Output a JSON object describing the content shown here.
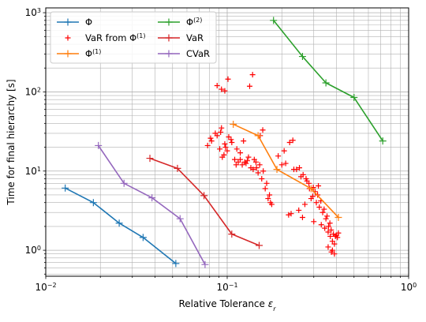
{
  "chart_data": {
    "type": "line",
    "xscale": "log",
    "yscale": "log",
    "xlim": [
      0.01,
      1.0
    ],
    "ylim": [
      0.47,
      1150
    ],
    "grid": true,
    "legend_position": "top-left",
    "xlabel": "Relative Tolerance",
    "xlabel_symbol": "ε",
    "xlabel_sub": "r",
    "ylabel": "Time for final hierarchy [s]",
    "x_ticks": [
      {
        "value": 0.01,
        "base": "10",
        "exp": "−2"
      },
      {
        "value": 0.1,
        "base": "10",
        "exp": "−1"
      },
      {
        "value": 1.0,
        "base": "10",
        "exp": "0"
      }
    ],
    "y_ticks": [
      {
        "value": 1,
        "base": "10",
        "exp": "0"
      },
      {
        "value": 10,
        "base": "10",
        "exp": "1"
      },
      {
        "value": 100,
        "base": "10",
        "exp": "2"
      },
      {
        "value": 1000,
        "base": "10",
        "exp": "3"
      }
    ],
    "series": [
      {
        "name": "Φ",
        "sup": "",
        "color": "#1f77b4",
        "style": "line",
        "x": [
          0.0128,
          0.0183,
          0.0254,
          0.0344,
          0.0521
        ],
        "y": [
          6.1,
          4.0,
          2.2,
          1.45,
          0.68
        ]
      },
      {
        "name": "VaR from Φ",
        "sup": "(1)",
        "color": "#ff0000",
        "style": "scatter",
        "x": [
          0.088,
          0.093,
          0.101,
          0.097,
          0.138,
          0.133,
          0.078,
          0.082,
          0.081,
          0.088,
          0.092,
          0.086,
          0.093,
          0.097,
          0.105,
          0.1,
          0.096,
          0.091,
          0.098,
          0.102,
          0.106,
          0.094,
          0.11,
          0.112,
          0.115,
          0.118,
          0.121,
          0.125,
          0.131,
          0.135,
          0.127,
          0.129,
          0.141,
          0.144,
          0.148,
          0.151,
          0.155,
          0.158,
          0.162,
          0.145,
          0.139,
          0.165,
          0.171,
          0.168,
          0.173,
          0.176,
          0.118,
          0.113,
          0.123,
          0.152,
          0.157,
          0.191,
          0.206,
          0.221,
          0.23,
          0.241,
          0.25,
          0.262,
          0.275,
          0.284,
          0.296,
          0.31,
          0.322,
          0.336,
          0.35,
          0.362,
          0.374,
          0.385,
          0.395,
          0.405,
          0.218,
          0.248,
          0.268,
          0.29,
          0.305,
          0.318,
          0.225,
          0.26,
          0.3,
          0.33,
          0.345,
          0.36,
          0.37,
          0.38,
          0.39,
          0.4,
          0.41,
          0.36,
          0.38,
          0.375,
          0.39,
          0.255,
          0.272,
          0.282,
          0.298,
          0.315,
          0.328,
          0.342,
          0.355,
          0.368,
          0.2,
          0.21,
          0.233
        ],
        "y": [
          120,
          108,
          145,
          103,
          165,
          118,
          21,
          24,
          26,
          28,
          31,
          30,
          35,
          22,
          25,
          18,
          16,
          19,
          20,
          27,
          23,
          15,
          14,
          12,
          13,
          14,
          12,
          13,
          15,
          11,
          12.5,
          13.5,
          14,
          13,
          9.5,
          12,
          8,
          10,
          6,
          11,
          10.5,
          7,
          5,
          4.5,
          4,
          3.8,
          17,
          19,
          24,
          28,
          33,
          15.5,
          18,
          23,
          24.5,
          10.5,
          11,
          9,
          7.5,
          6,
          4.8,
          4,
          3.5,
          3,
          2.5,
          2,
          1.8,
          1.6,
          1.5,
          1.45,
          2.8,
          3.2,
          3.8,
          4.5,
          5.5,
          6.5,
          2.9,
          2.6,
          2.3,
          2.1,
          1.9,
          1.7,
          1.5,
          1.3,
          1.2,
          1.55,
          1.65,
          1.1,
          1.0,
          0.95,
          0.9,
          8.5,
          8,
          7,
          6.2,
          5,
          4.2,
          3.3,
          2.7,
          2.2,
          12,
          12.5,
          10.5
        ]
      },
      {
        "name": "Φ",
        "sup": "(1)",
        "color": "#ff7f0e",
        "style": "line",
        "x": [
          0.108,
          0.148,
          0.188,
          0.29,
          0.41
        ],
        "y": [
          39,
          28,
          10.5,
          6.0,
          2.6
        ]
      },
      {
        "name": "Φ",
        "sup": "(2)",
        "color": "#2ca02c",
        "style": "line",
        "x": [
          0.18,
          0.26,
          0.35,
          0.5,
          0.72
        ],
        "y": [
          800,
          280,
          130,
          85,
          24
        ]
      },
      {
        "name": "VaR",
        "sup": "",
        "color": "#d62728",
        "style": "line",
        "x": [
          0.0375,
          0.0532,
          0.0745,
          0.106,
          0.15
        ],
        "y": [
          14.5,
          10.8,
          4.9,
          1.6,
          1.15
        ]
      },
      {
        "name": "CVaR",
        "sup": "",
        "color": "#9467bd",
        "style": "line",
        "x": [
          0.0195,
          0.027,
          0.0385,
          0.055,
          0.0755
        ],
        "y": [
          21,
          7.0,
          4.6,
          2.5,
          0.66
        ]
      }
    ]
  }
}
